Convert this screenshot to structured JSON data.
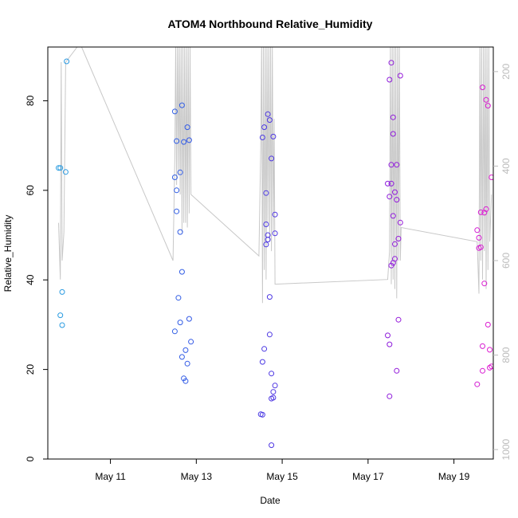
{
  "chart_data": {
    "type": "scatter",
    "title": "ATOM4 Northbound Relative_Humidity",
    "xlabel": "Date",
    "ylabel": "Relative_Humidity",
    "x_ticks": [
      "May 11",
      "May 13",
      "May 15",
      "May 17",
      "May 19"
    ],
    "xlim": [
      "2021-05-09 13:00",
      "2021-05-19 22:00"
    ],
    "ylim": [
      0,
      92
    ],
    "y_ticks": [
      0,
      20,
      40,
      60,
      80
    ],
    "y2_ticks": [
      200,
      400,
      600,
      800,
      1000
    ],
    "y2lim": [
      1020,
      148
    ],
    "y2_reversed": true,
    "grid": false,
    "colors": {
      "points_start": "#29a3e0",
      "points_mid": "#3355e6",
      "points_mid2": "#6a1be0",
      "points_end": "#e01bd0",
      "line": "#c8c8c8",
      "right_axis": "#bbbbbb"
    },
    "series": [
      {
        "kind": "points",
        "points": [
          [
            "2021-05-09 19:00",
            65.0
          ],
          [
            "2021-05-09 20:00",
            65.0
          ],
          [
            "2021-05-09 21:00",
            37.3
          ],
          [
            "2021-05-09 20:00",
            32.1
          ],
          [
            "2021-05-09 21:00",
            29.9
          ],
          [
            "2021-05-09 23:00",
            64.1
          ],
          [
            "2021-05-09 23:30",
            88.8
          ],
          [
            "2021-05-12 12:00",
            77.6
          ],
          [
            "2021-05-12 12:00",
            62.9
          ],
          [
            "2021-05-12 12:00",
            28.5
          ],
          [
            "2021-05-12 13:00",
            71.0
          ],
          [
            "2021-05-12 13:00",
            55.3
          ],
          [
            "2021-05-12 13:00",
            60.0
          ],
          [
            "2021-05-12 14:00",
            36.0
          ],
          [
            "2021-05-12 15:00",
            64.0
          ],
          [
            "2021-05-12 15:00",
            50.7
          ],
          [
            "2021-05-12 15:00",
            30.5
          ],
          [
            "2021-05-12 16:00",
            79.0
          ],
          [
            "2021-05-12 16:00",
            41.8
          ],
          [
            "2021-05-12 16:00",
            22.8
          ],
          [
            "2021-05-12 17:00",
            18.0
          ],
          [
            "2021-05-12 17:00",
            70.8
          ],
          [
            "2021-05-12 18:00",
            24.3
          ],
          [
            "2021-05-12 18:00",
            17.4
          ],
          [
            "2021-05-12 19:00",
            74.1
          ],
          [
            "2021-05-12 19:00",
            21.3
          ],
          [
            "2021-05-12 20:00",
            71.2
          ],
          [
            "2021-05-12 20:00",
            31.3
          ],
          [
            "2021-05-12 21:00",
            26.2
          ],
          [
            "2021-05-14 12:00",
            10.0
          ],
          [
            "2021-05-14 13:00",
            71.8
          ],
          [
            "2021-05-14 13:00",
            21.7
          ],
          [
            "2021-05-14 13:00",
            9.9
          ],
          [
            "2021-05-14 14:00",
            24.6
          ],
          [
            "2021-05-14 14:00",
            74.1
          ],
          [
            "2021-05-14 15:00",
            52.4
          ],
          [
            "2021-05-14 15:00",
            47.9
          ],
          [
            "2021-05-14 15:00",
            59.4
          ],
          [
            "2021-05-14 16:00",
            77.0
          ],
          [
            "2021-05-14 16:00",
            49.0
          ],
          [
            "2021-05-14 16:00",
            50.0
          ],
          [
            "2021-05-14 17:00",
            36.2
          ],
          [
            "2021-05-14 17:00",
            75.7
          ],
          [
            "2021-05-14 17:00",
            27.8
          ],
          [
            "2021-05-14 18:00",
            19.1
          ],
          [
            "2021-05-14 18:00",
            67.1
          ],
          [
            "2021-05-14 18:00",
            13.5
          ],
          [
            "2021-05-14 18:00",
            3.1
          ],
          [
            "2021-05-14 19:00",
            15.0
          ],
          [
            "2021-05-14 19:00",
            72.0
          ],
          [
            "2021-05-14 19:00",
            13.7
          ],
          [
            "2021-05-14 20:00",
            50.4
          ],
          [
            "2021-05-14 20:00",
            16.4
          ],
          [
            "2021-05-14 20:00",
            54.6
          ],
          [
            "2021-05-17 11:00",
            27.6
          ],
          [
            "2021-05-17 11:00",
            61.5
          ],
          [
            "2021-05-17 12:00",
            58.6
          ],
          [
            "2021-05-17 12:00",
            84.7
          ],
          [
            "2021-05-17 12:00",
            25.6
          ],
          [
            "2021-05-17 12:00",
            14.0
          ],
          [
            "2021-05-17 13:00",
            88.5
          ],
          [
            "2021-05-17 13:00",
            65.7
          ],
          [
            "2021-05-17 13:00",
            43.2
          ],
          [
            "2021-05-17 13:00",
            61.5
          ],
          [
            "2021-05-17 14:00",
            72.6
          ],
          [
            "2021-05-17 14:00",
            54.3
          ],
          [
            "2021-05-17 14:00",
            43.8
          ],
          [
            "2021-05-17 14:00",
            76.3
          ],
          [
            "2021-05-17 15:00",
            59.6
          ],
          [
            "2021-05-17 15:00",
            48.0
          ],
          [
            "2021-05-17 15:00",
            44.7
          ],
          [
            "2021-05-17 16:00",
            65.7
          ],
          [
            "2021-05-17 16:00",
            57.9
          ],
          [
            "2021-05-17 16:00",
            19.7
          ],
          [
            "2021-05-17 17:00",
            31.1
          ],
          [
            "2021-05-17 17:00",
            49.2
          ],
          [
            "2021-05-17 18:00",
            85.6
          ],
          [
            "2021-05-17 18:00",
            52.8
          ],
          [
            "2021-05-19 13:00",
            16.7
          ],
          [
            "2021-05-19 13:00",
            51.1
          ],
          [
            "2021-05-19 14:00",
            47.1
          ],
          [
            "2021-05-19 14:00",
            49.4
          ],
          [
            "2021-05-19 15:00",
            55.1
          ],
          [
            "2021-05-19 15:00",
            47.3
          ],
          [
            "2021-05-19 16:00",
            83.0
          ],
          [
            "2021-05-19 16:00",
            25.2
          ],
          [
            "2021-05-19 16:00",
            19.7
          ],
          [
            "2021-05-19 17:00",
            39.2
          ],
          [
            "2021-05-19 17:00",
            55.0
          ],
          [
            "2021-05-19 18:00",
            80.2
          ],
          [
            "2021-05-19 18:00",
            55.8
          ],
          [
            "2021-05-19 19:00",
            30.0
          ],
          [
            "2021-05-19 19:00",
            78.9
          ],
          [
            "2021-05-19 20:00",
            20.4
          ],
          [
            "2021-05-19 20:00",
            24.4
          ],
          [
            "2021-05-19 21:00",
            62.9
          ],
          [
            "2021-05-19 21:00",
            20.7
          ]
        ]
      },
      {
        "kind": "line",
        "axis": "right",
        "points": [
          [
            "2021-05-09 19:00",
            520
          ],
          [
            "2021-05-09 20:00",
            640
          ],
          [
            "2021-05-09 20:30",
            180
          ],
          [
            "2021-05-09 21:00",
            600
          ],
          [
            "2021-05-09 22:00",
            540
          ],
          [
            "2021-05-09 23:00",
            180
          ],
          [
            "2021-05-10 07:00",
            140
          ],
          [
            "2021-05-12 11:00",
            600
          ],
          [
            "2021-05-12 12:00",
            380
          ],
          [
            "2021-05-12 12:30",
            140
          ],
          [
            "2021-05-12 13:00",
            440
          ],
          [
            "2021-05-12 13:30",
            140
          ],
          [
            "2021-05-12 14:00",
            420
          ],
          [
            "2021-05-12 14:30",
            140
          ],
          [
            "2021-05-12 15:00",
            460
          ],
          [
            "2021-05-12 15:30",
            140
          ],
          [
            "2021-05-12 16:00",
            540
          ],
          [
            "2021-05-12 16:30",
            140
          ],
          [
            "2021-05-12 17:00",
            520
          ],
          [
            "2021-05-12 17:30",
            140
          ],
          [
            "2021-05-12 18:00",
            520
          ],
          [
            "2021-05-12 18:30",
            140
          ],
          [
            "2021-05-12 19:00",
            530
          ],
          [
            "2021-05-12 19:30",
            140
          ],
          [
            "2021-05-12 20:00",
            500
          ],
          [
            "2021-05-12 20:30",
            140
          ],
          [
            "2021-05-12 21:00",
            460
          ],
          [
            "2021-05-14 11:00",
            590
          ],
          [
            "2021-05-14 12:00",
            360
          ],
          [
            "2021-05-14 12:30",
            140
          ],
          [
            "2021-05-14 13:00",
            690
          ],
          [
            "2021-05-14 13:30",
            140
          ],
          [
            "2021-05-14 14:00",
            620
          ],
          [
            "2021-05-14 14:30",
            140
          ],
          [
            "2021-05-14 15:00",
            640
          ],
          [
            "2021-05-14 15:30",
            140
          ],
          [
            "2021-05-14 16:00",
            520
          ],
          [
            "2021-05-14 16:30",
            140
          ],
          [
            "2021-05-14 17:00",
            560
          ],
          [
            "2021-05-14 17:30",
            140
          ],
          [
            "2021-05-14 18:00",
            580
          ],
          [
            "2021-05-14 18:30",
            140
          ],
          [
            "2021-05-14 19:00",
            540
          ],
          [
            "2021-05-14 19:30",
            300
          ],
          [
            "2021-05-14 20:00",
            650
          ],
          [
            "2021-05-17 11:00",
            640
          ],
          [
            "2021-05-17 12:00",
            580
          ],
          [
            "2021-05-17 12:30",
            140
          ],
          [
            "2021-05-17 13:00",
            650
          ],
          [
            "2021-05-17 13:30",
            140
          ],
          [
            "2021-05-17 14:00",
            640
          ],
          [
            "2021-05-17 14:30",
            140
          ],
          [
            "2021-05-17 15:00",
            660
          ],
          [
            "2021-05-17 15:30",
            140
          ],
          [
            "2021-05-17 16:00",
            680
          ],
          [
            "2021-05-17 16:30",
            140
          ],
          [
            "2021-05-17 17:00",
            600
          ],
          [
            "2021-05-17 17:30",
            140
          ],
          [
            "2021-05-17 18:00",
            600
          ],
          [
            "2021-05-17 18:30",
            530
          ],
          [
            "2021-05-19 13:00",
            560
          ],
          [
            "2021-05-19 14:00",
            670
          ],
          [
            "2021-05-19 14:30",
            140
          ],
          [
            "2021-05-19 15:00",
            600
          ],
          [
            "2021-05-19 15:30",
            140
          ],
          [
            "2021-05-19 16:00",
            640
          ],
          [
            "2021-05-19 16:30",
            140
          ],
          [
            "2021-05-19 17:00",
            580
          ],
          [
            "2021-05-19 17:30",
            140
          ],
          [
            "2021-05-19 18:00",
            660
          ],
          [
            "2021-05-19 18:30",
            140
          ],
          [
            "2021-05-19 19:00",
            620
          ],
          [
            "2021-05-19 19:30",
            140
          ],
          [
            "2021-05-19 20:00",
            560
          ],
          [
            "2021-05-19 21:00",
            460
          ]
        ]
      }
    ]
  }
}
